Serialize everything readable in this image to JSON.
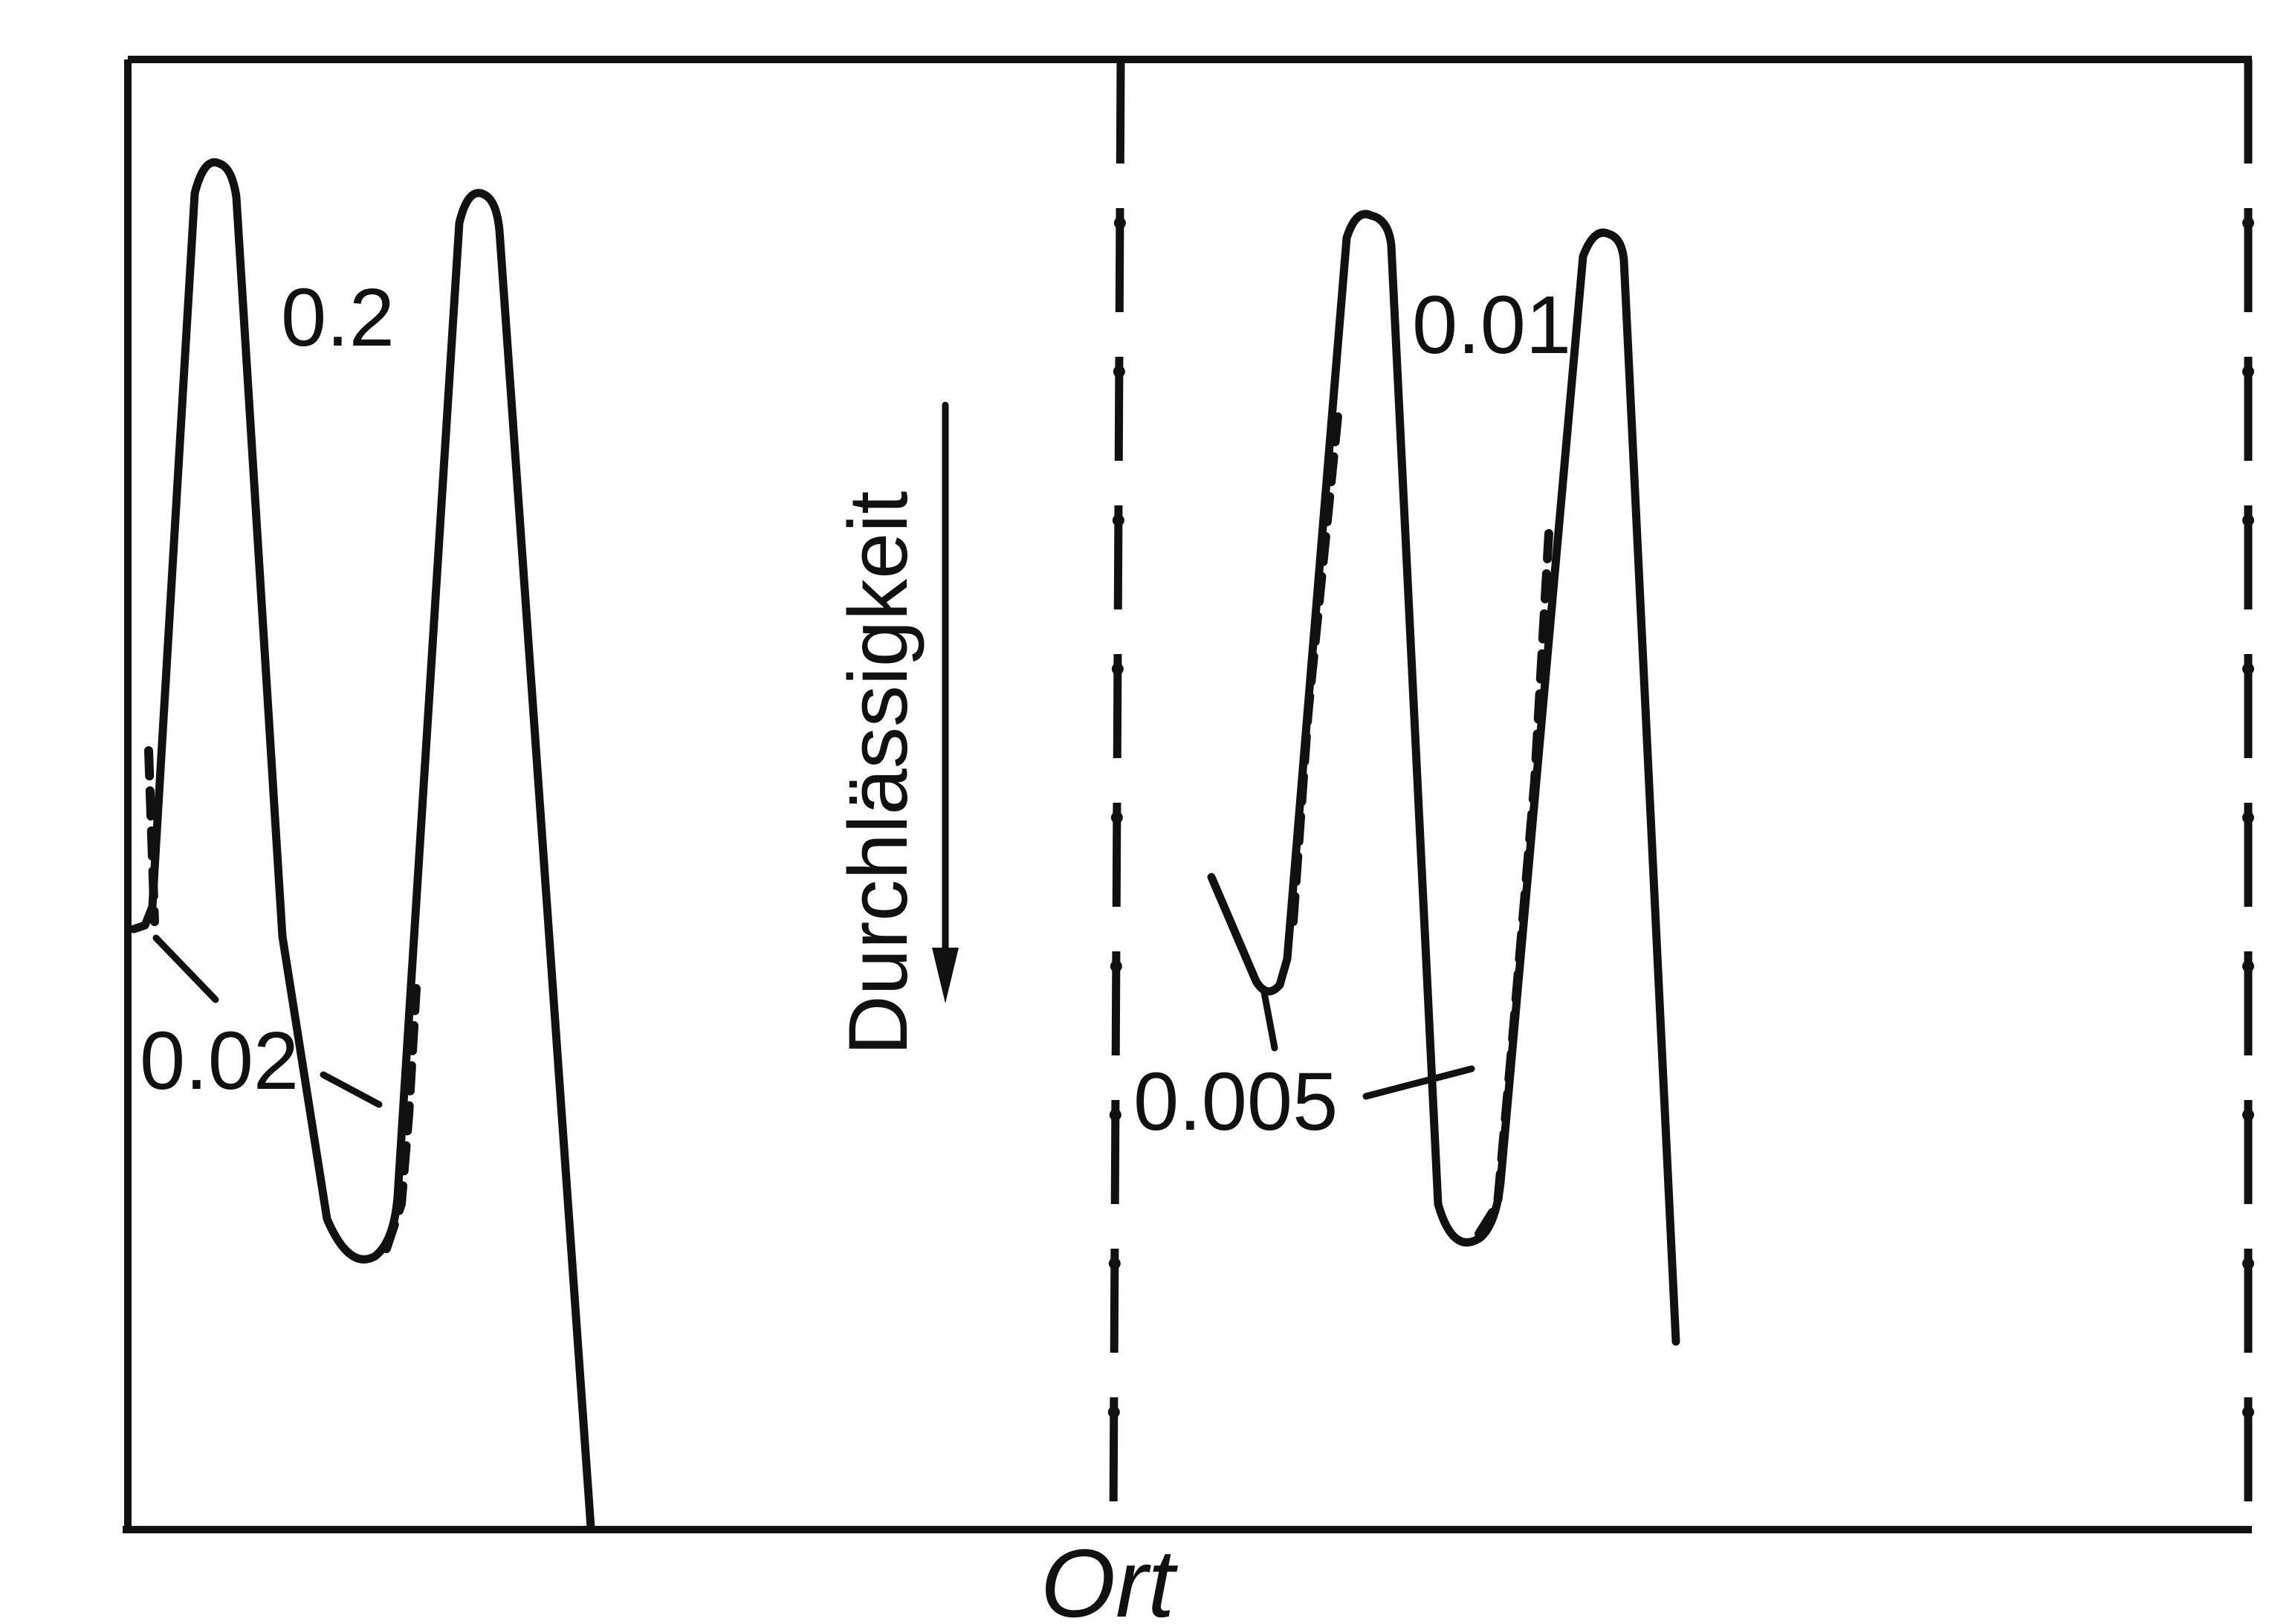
{
  "figure": {
    "ylabel": "Durchlässigkeit",
    "xlabel": "Ort",
    "panels": [
      {
        "curve_label": "0.2",
        "dashed_label": "0.02"
      },
      {
        "curve_label": "0.01",
        "dashed_label": "0.005"
      }
    ]
  },
  "colors": {
    "ink": "#111111",
    "paper": "#ffffff"
  }
}
